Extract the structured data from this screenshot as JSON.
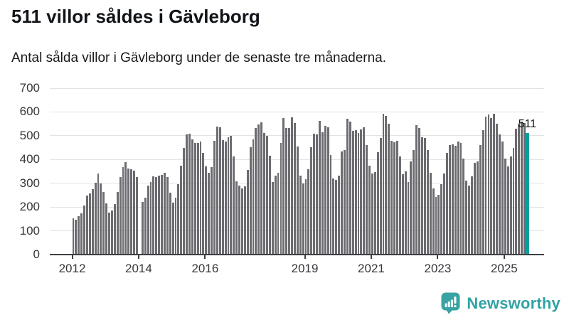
{
  "header": {
    "title": "511 villor såldes i Gävleborg",
    "subtitle": "Antal sålda villor i Gävleborg under de senaste tre månaderna."
  },
  "chart_data": {
    "type": "bar",
    "title": "511 villor såldes i Gävleborg",
    "subtitle": "Antal sålda villor i Gävleborg under de senaste tre månaderna.",
    "ylim": [
      0,
      700
    ],
    "y_ticks": [
      0,
      100,
      200,
      300,
      400,
      500,
      600,
      700
    ],
    "x_ticks": [
      "2012",
      "2014",
      "2016",
      "2019",
      "2021",
      "2023",
      "2025"
    ],
    "start_year": 2012,
    "grid": "horizontal",
    "years": [
      "2012",
      "2013",
      "2014",
      "2015",
      "2016",
      "2017",
      "2018",
      "2019",
      "2020",
      "2021",
      "2022",
      "2023",
      "2024",
      "2025"
    ],
    "values_by_year": {
      "2012": [
        153,
        147,
        162,
        174,
        205,
        248,
        258,
        276,
        303,
        340,
        300,
        262
      ],
      "2013": [
        216,
        176,
        186,
        211,
        262,
        327,
        368,
        388,
        363,
        360,
        353,
        327
      ],
      "2014": [
        null,
        220,
        240,
        290,
        305,
        329,
        326,
        332,
        336,
        343,
        326,
        261
      ],
      "2015": [
        218,
        239,
        295,
        375,
        448,
        505,
        510,
        486,
        470,
        469,
        475,
        427
      ],
      "2016": [
        372,
        345,
        367,
        479,
        539,
        535,
        481,
        477,
        493,
        499,
        412,
        307
      ],
      "2017": [
        289,
        277,
        287,
        357,
        453,
        485,
        532,
        546,
        557,
        513,
        501,
        415
      ],
      "2018": [
        304,
        331,
        345,
        470,
        574,
        531,
        533,
        576,
        553,
        455,
        332,
        299
      ],
      "2019": [
        316,
        359,
        452,
        510,
        505,
        561,
        515,
        541,
        535,
        419,
        319,
        314
      ],
      "2020": [
        331,
        434,
        439,
        571,
        559,
        521,
        523,
        513,
        526,
        536,
        460,
        374
      ],
      "2021": [
        341,
        347,
        430,
        490,
        591,
        583,
        551,
        478,
        472,
        478,
        414,
        339
      ],
      "2022": [
        349,
        306,
        391,
        439,
        543,
        531,
        493,
        492,
        440,
        344,
        278,
        241
      ],
      "2023": [
        250,
        296,
        341,
        429,
        461,
        464,
        457,
        477,
        470,
        404,
        310,
        290
      ],
      "2024": [
        330,
        387,
        391,
        461,
        524,
        581,
        589,
        574,
        592,
        549,
        506,
        476
      ],
      "2025": [
        405,
        372,
        412,
        448,
        530,
        550,
        560,
        552,
        511
      ]
    },
    "highlight": {
      "label": "511",
      "value": 511,
      "position": "last"
    }
  },
  "colors": {
    "bar": "#6c6c71",
    "highlight": "#00a0a2",
    "gridline": "#e3e3e4",
    "axis": "#3f4045",
    "brand": "#31a2a3"
  },
  "branding": {
    "name": "Newsworthy"
  }
}
